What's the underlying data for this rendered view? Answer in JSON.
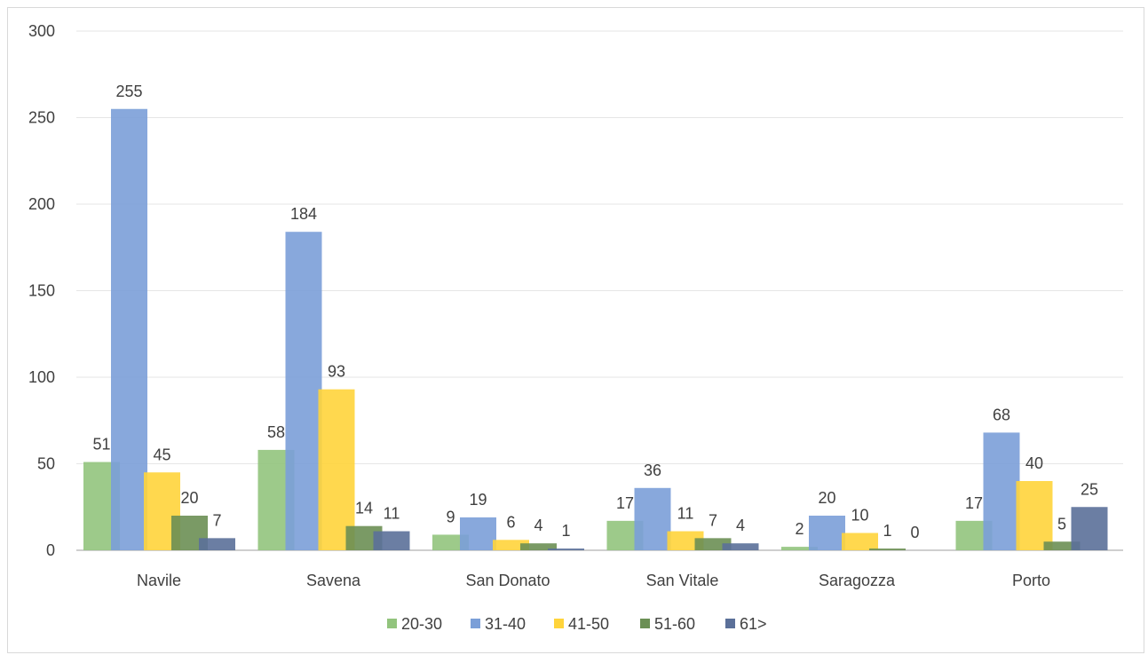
{
  "chart_data": {
    "type": "bar",
    "title": "",
    "xlabel": "",
    "ylabel": "",
    "ylim": [
      0,
      300
    ],
    "y_ticks": [
      0,
      50,
      100,
      150,
      200,
      250,
      300
    ],
    "grid": true,
    "legend_position": "bottom",
    "categories": [
      "Navile",
      "Savena",
      "San Donato",
      "San Vitale",
      "Saragozza",
      "Porto"
    ],
    "series": [
      {
        "name": "20-30",
        "color": "#92c47d",
        "values": [
          51,
          58,
          9,
          17,
          2,
          17
        ]
      },
      {
        "name": "31-40",
        "color": "#7b9fd8",
        "values": [
          255,
          184,
          19,
          36,
          20,
          68
        ]
      },
      {
        "name": "41-50",
        "color": "#ffd43b",
        "values": [
          45,
          93,
          6,
          11,
          10,
          40
        ]
      },
      {
        "name": "51-60",
        "color": "#6b8f54",
        "values": [
          20,
          14,
          4,
          7,
          1,
          5
        ]
      },
      {
        "name": "61>",
        "color": "#5b7099",
        "values": [
          7,
          11,
          1,
          4,
          0,
          25
        ]
      }
    ]
  }
}
